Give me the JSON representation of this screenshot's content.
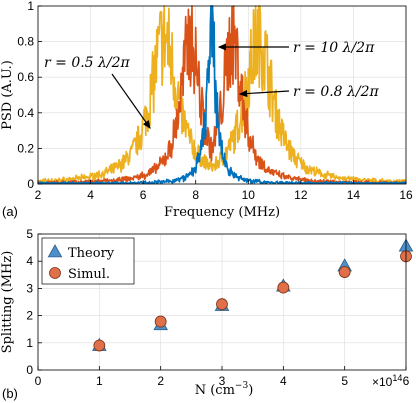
{
  "chart_data": [
    {
      "panel_label": "(a)",
      "type": "line",
      "xlabel": "Frequency (MHz)",
      "ylabel": "PSD (A.U.)",
      "xlim": [
        2,
        16
      ],
      "ylim": [
        0,
        1
      ],
      "xticks": [
        2,
        4,
        6,
        8,
        10,
        12,
        14,
        16
      ],
      "yticks": [
        0,
        0.2,
        0.4,
        0.6,
        0.8,
        1
      ],
      "grid": true,
      "series": [
        {
          "name": "r = 0.5 λ/2π",
          "color": "#EDB120",
          "peaks": [
            6.8,
            10.4
          ],
          "width": 0.65
        },
        {
          "name": "r = 0.8 λ/2π",
          "color": "#D95319",
          "peaks": [
            7.8,
            9.4
          ],
          "width": 0.45
        },
        {
          "name": "r = 10 λ/2π",
          "color": "#0072BD",
          "peaks": [
            8.6
          ],
          "width": 0.22
        }
      ],
      "annotations": [
        {
          "text": "r = 10 λ/2π",
          "target": [
            8.7,
            0.8
          ]
        },
        {
          "text": "r = 0.8 λ/2π",
          "target": [
            9.7,
            0.53
          ]
        },
        {
          "text": "r = 0.5 λ/2π",
          "target": [
            6.4,
            0.34
          ]
        }
      ]
    },
    {
      "panel_label": "(b)",
      "type": "scatter",
      "xlabel": "N (cm",
      "xlabel_sup": "−3",
      "xlabel_tail": ")",
      "ylabel": "Splitting (MHz)",
      "xlim": [
        0,
        6
      ],
      "ylim": [
        0,
        5
      ],
      "xticks": [
        0,
        1,
        2,
        3,
        4,
        5,
        6
      ],
      "yticks": [
        0,
        1,
        2,
        3,
        4,
        5
      ],
      "x_multiplier": "×10",
      "x_multiplier_exp": "14",
      "grid": true,
      "legend_position": "top-left",
      "series": [
        {
          "name": "Theory",
          "marker": "triangle",
          "color": "#4E8FC7",
          "x": [
            1,
            2,
            3,
            4,
            5,
            6
          ],
          "y": [
            0.9,
            1.66,
            2.37,
            3.08,
            3.82,
            4.55
          ]
        },
        {
          "name": "Simul.",
          "marker": "circle",
          "color": "#E0704A",
          "x": [
            1,
            2,
            3,
            4,
            5,
            6
          ],
          "y": [
            0.9,
            1.78,
            2.42,
            3.03,
            3.6,
            4.18
          ]
        }
      ]
    }
  ]
}
